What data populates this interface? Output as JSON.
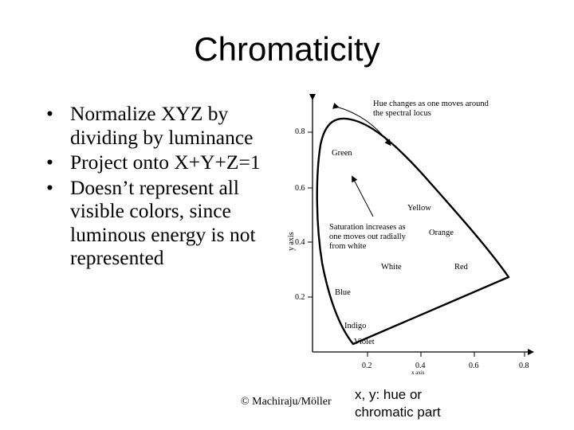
{
  "slide": {
    "title": "Chromaticity",
    "bullets": [
      "Normalize XYZ by dividing by luminance",
      "Project onto X+Y+Z=1",
      "Doesn’t represent all visible colors, since luminous energy is not represented"
    ],
    "credit": "© Machiraju/Möller",
    "caption_line1": "x, y: hue or",
    "caption_line2": "chromatic part"
  },
  "figure": {
    "y_axis_label": "y axis",
    "x_axis_label": "x axis",
    "y_ticks": [
      "0.8",
      "0.6",
      "0.4",
      "0.2"
    ],
    "x_ticks": [
      "0.2",
      "0.4",
      "0.6",
      "0.8"
    ],
    "annotation_hue_line1": "Hue changes as one moves around",
    "annotation_hue_line2": "the spectral locus",
    "annotation_sat_line1": "Saturation increases as",
    "annotation_sat_line2": "one moves out radially",
    "annotation_sat_line3": "from white",
    "labels": {
      "green": "Green",
      "yellow": "Yellow",
      "orange": "Orange",
      "white": "White",
      "red": "Red",
      "blue": "Blue",
      "indigo": "Indigo",
      "violet": "Violet"
    }
  }
}
